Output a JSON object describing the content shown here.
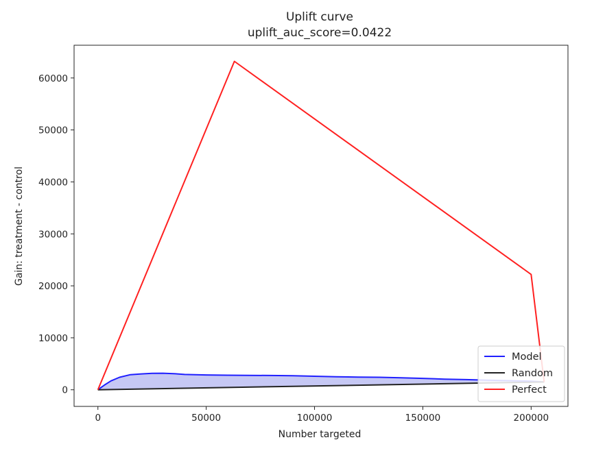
{
  "chart_data": {
    "type": "line",
    "title": "Uplift curve",
    "subtitle": "uplift_auc_score=0.0422",
    "xlabel": "Number targeted",
    "ylabel": "Gain: treatment - control",
    "xlim": [
      -11000,
      217000
    ],
    "ylim": [
      -3200,
      66300
    ],
    "x_ticks": [
      0,
      50000,
      100000,
      150000,
      200000
    ],
    "y_ticks": [
      0,
      10000,
      20000,
      30000,
      40000,
      50000,
      60000
    ],
    "grid": false,
    "legend_position": "bottom-right",
    "fill_between": {
      "upper": "Model",
      "lower": "Random",
      "color": "#c6c8f4"
    },
    "series": [
      {
        "name": "Model",
        "color": "#1f1fff",
        "x": [
          0,
          3000,
          6000,
          10000,
          15000,
          20000,
          25000,
          30000,
          35000,
          40000,
          50000,
          60000,
          70000,
          80000,
          90000,
          100000,
          110000,
          120000,
          130000,
          140000,
          150000,
          160000,
          170000,
          180000,
          190000,
          200000,
          206000
        ],
        "y": [
          0,
          900,
          1700,
          2400,
          2900,
          3050,
          3150,
          3180,
          3100,
          2950,
          2850,
          2800,
          2780,
          2750,
          2700,
          2600,
          2500,
          2450,
          2400,
          2300,
          2200,
          2050,
          1950,
          1850,
          1750,
          1650,
          1500
        ]
      },
      {
        "name": "Random",
        "color": "#222222",
        "x": [
          0,
          206000
        ],
        "y": [
          0,
          1500
        ]
      },
      {
        "name": "Perfect",
        "color": "#ff2020",
        "x": [
          0,
          63000,
          200000,
          206000
        ],
        "y": [
          0,
          63200,
          22200,
          1500
        ]
      }
    ]
  }
}
